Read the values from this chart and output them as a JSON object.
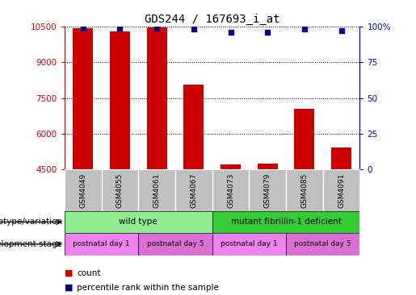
{
  "title": "GDS244 / 167693_i_at",
  "samples": [
    "GSM4049",
    "GSM4055",
    "GSM4061",
    "GSM4067",
    "GSM4073",
    "GSM4079",
    "GSM4085",
    "GSM4091"
  ],
  "counts": [
    10420,
    10310,
    10470,
    8060,
    4730,
    4740,
    7050,
    5430
  ],
  "percentiles": [
    99,
    99,
    99,
    98,
    96,
    96,
    98,
    97
  ],
  "ylim_left": [
    4500,
    10500
  ],
  "ylim_right": [
    0,
    100
  ],
  "yticks_left": [
    4500,
    6000,
    7500,
    9000,
    10500
  ],
  "yticks_right": [
    0,
    25,
    50,
    75,
    100
  ],
  "bar_color": "#cc0000",
  "scatter_color": "#00008b",
  "sample_label_bg": "#c0c0c0",
  "genotype_row": {
    "label": "genotype/variation",
    "groups": [
      {
        "text": "wild type",
        "span": [
          0,
          4
        ],
        "color": "#90ee90"
      },
      {
        "text": "mutant fibrillin-1 deficient",
        "span": [
          4,
          8
        ],
        "color": "#32cd32"
      }
    ]
  },
  "stage_row": {
    "label": "development stage",
    "groups": [
      {
        "text": "postnatal day 1",
        "span": [
          0,
          2
        ],
        "color": "#ee82ee"
      },
      {
        "text": "postnatal day 5",
        "span": [
          2,
          4
        ],
        "color": "#da70d6"
      },
      {
        "text": "postnatal day 1",
        "span": [
          4,
          6
        ],
        "color": "#ee82ee"
      },
      {
        "text": "postnatal day 5",
        "span": [
          6,
          8
        ],
        "color": "#da70d6"
      }
    ]
  },
  "legend_count_color": "#cc0000",
  "legend_percentile_color": "#00008b",
  "left_axis_color": "#cc0000",
  "right_axis_color": "#0000cc"
}
